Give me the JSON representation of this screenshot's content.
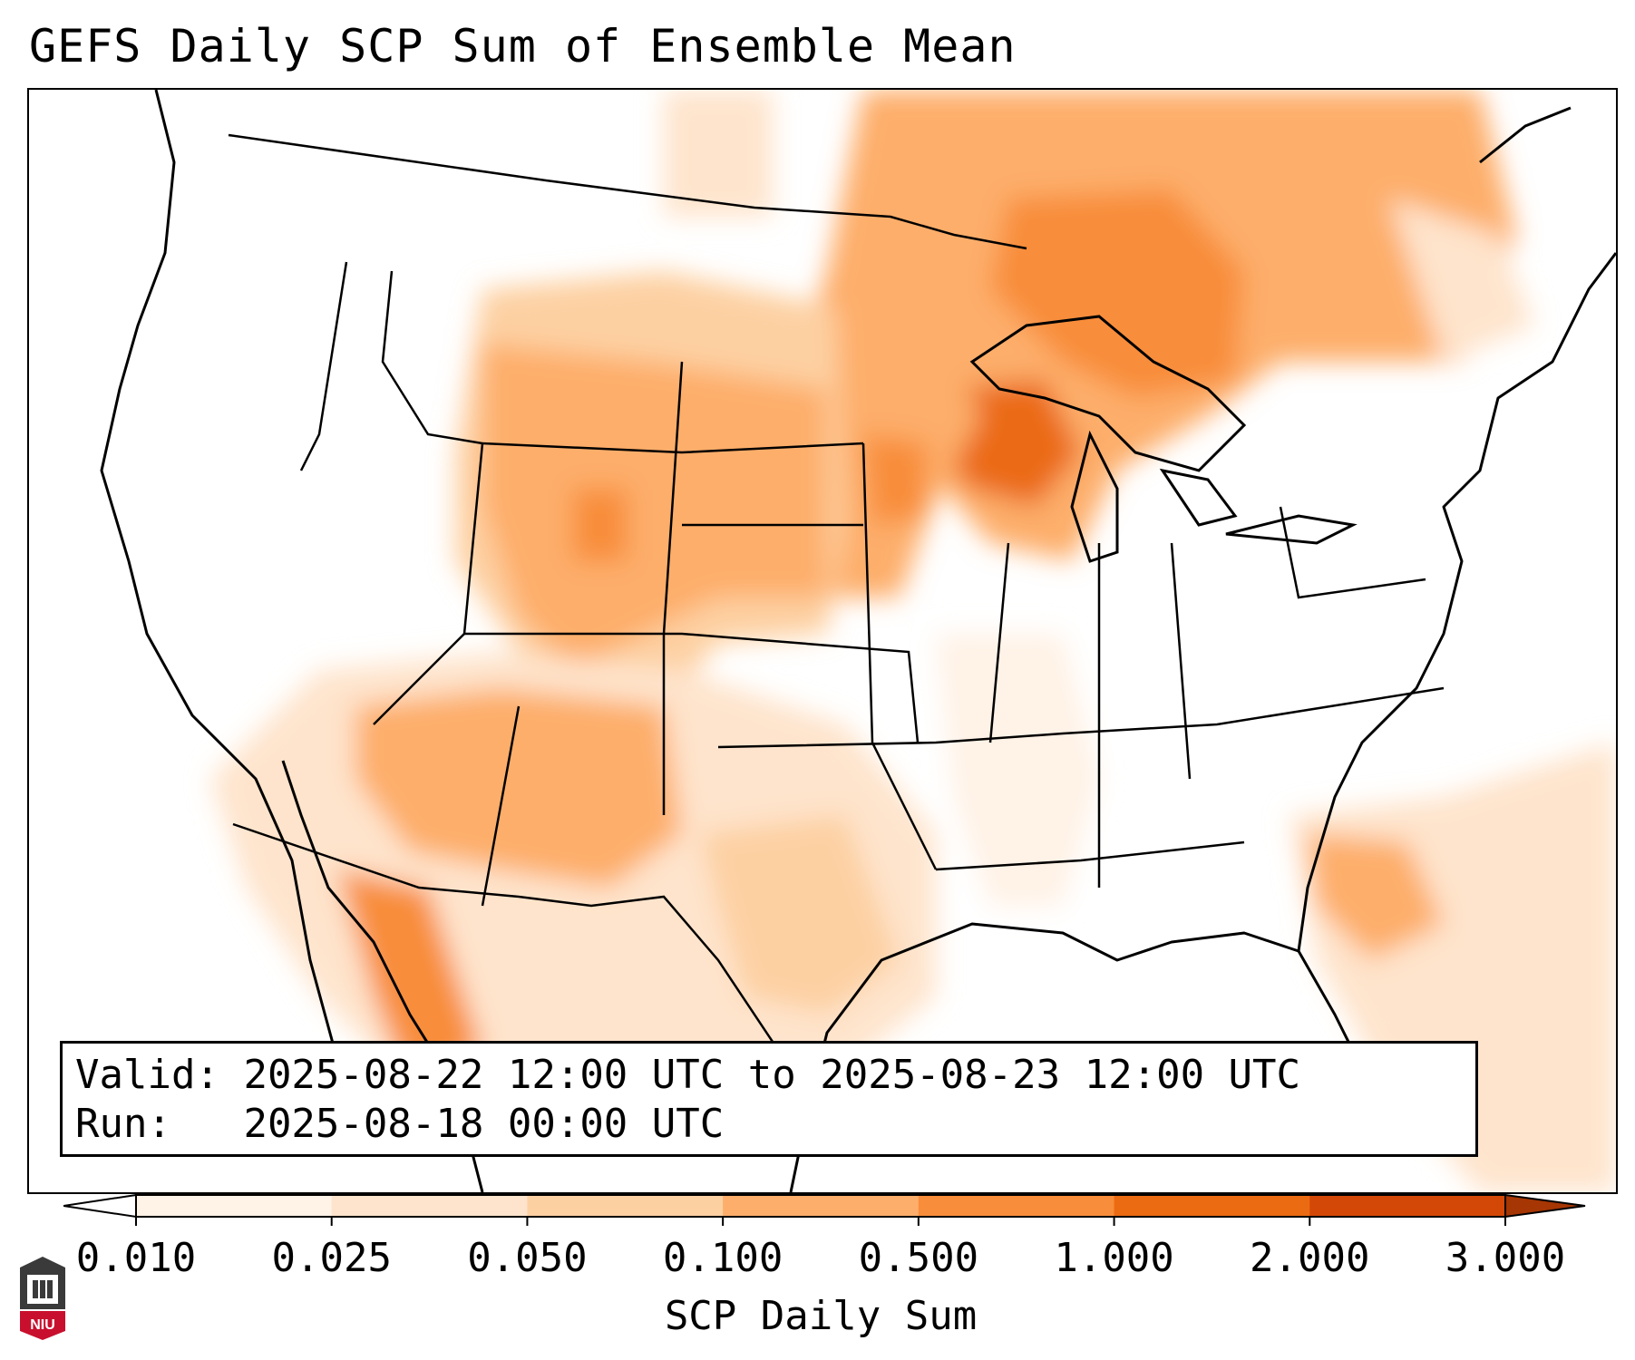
{
  "title": "GEFS Daily SCP Sum of Ensemble Mean",
  "info": {
    "valid_label": "Valid:",
    "valid_value": "2025-08-22 12:00 UTC to 2025-08-23 12:00 UTC",
    "run_label": "Run:",
    "run_value": "2025-08-18 00:00 UTC"
  },
  "colorbar": {
    "title": "SCP Daily Sum",
    "ticks": [
      "0.010",
      "0.025",
      "0.050",
      "0.100",
      "0.500",
      "1.000",
      "2.000",
      "3.000"
    ],
    "colors": [
      "#fff2e6",
      "#fee4cc",
      "#fdd0a2",
      "#fdae6b",
      "#f88d3b",
      "#eb6b12",
      "#d34807"
    ],
    "extend": "both"
  },
  "logo": {
    "text": "NIU"
  }
}
